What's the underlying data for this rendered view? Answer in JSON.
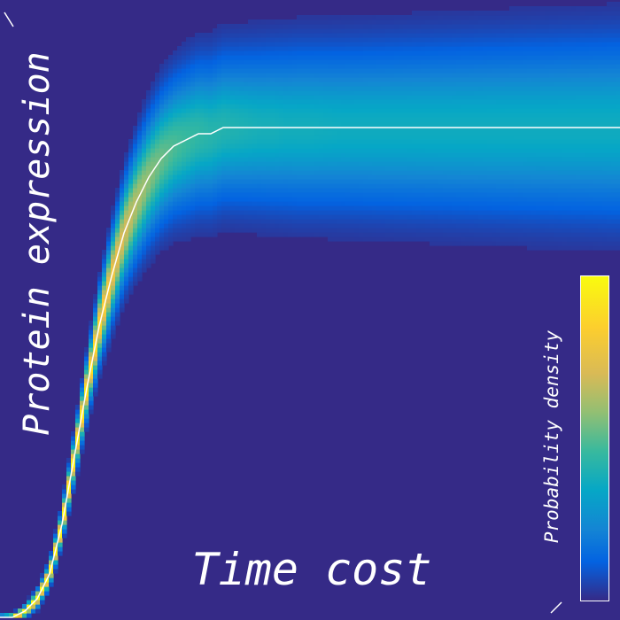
{
  "chart_data": {
    "type": "heatmap",
    "title": "",
    "xlabel": "Time cost",
    "ylabel": "Protein expression",
    "colorbar_label": "Probability density",
    "colormap": "parula",
    "colormap_stops": [
      "#352a87",
      "#0363e1",
      "#1485d4",
      "#06a7c6",
      "#38b99e",
      "#92bf73",
      "#d9ba56",
      "#fcce2e",
      "#f9fb0e"
    ],
    "background_color": "#352a87",
    "mean_curve_color": "#ffffff",
    "tick_labels": "none",
    "grid": false,
    "colorbar_placement": "bottom-right",
    "mean_curve": {
      "x": [
        0,
        0.02,
        0.04,
        0.06,
        0.08,
        0.1,
        0.12,
        0.14,
        0.16,
        0.18,
        0.2,
        0.22,
        0.24,
        0.26,
        0.28,
        0.3,
        0.32,
        0.34,
        0.36,
        0.38,
        0.4,
        0.42,
        0.44,
        0.46,
        0.48,
        0.5,
        0.55,
        0.6,
        0.65,
        0.7,
        0.75,
        0.8,
        0.85,
        0.9,
        0.95,
        1.0
      ],
      "y": [
        0.0,
        0.0,
        0.01,
        0.03,
        0.07,
        0.15,
        0.26,
        0.37,
        0.47,
        0.55,
        0.62,
        0.67,
        0.71,
        0.74,
        0.76,
        0.77,
        0.78,
        0.78,
        0.79,
        0.79,
        0.79,
        0.79,
        0.79,
        0.79,
        0.79,
        0.79,
        0.79,
        0.79,
        0.79,
        0.79,
        0.79,
        0.79,
        0.79,
        0.79,
        0.79,
        0.79
      ]
    },
    "band": {
      "x": [
        0,
        0.02,
        0.04,
        0.06,
        0.08,
        0.1,
        0.12,
        0.14,
        0.16,
        0.18,
        0.2,
        0.22,
        0.24,
        0.26,
        0.28,
        0.3,
        0.32,
        0.34,
        0.36,
        0.38,
        0.4,
        0.42,
        0.44,
        0.46,
        0.48,
        0.5,
        0.55,
        0.6,
        0.65,
        0.7,
        0.75,
        0.8,
        0.85,
        0.9,
        0.95,
        1.0
      ],
      "spread": [
        0.002,
        0.003,
        0.005,
        0.008,
        0.011,
        0.015,
        0.02,
        0.026,
        0.033,
        0.04,
        0.047,
        0.053,
        0.058,
        0.062,
        0.065,
        0.068,
        0.07,
        0.071,
        0.072,
        0.073,
        0.074,
        0.075,
        0.076,
        0.077,
        0.078,
        0.078,
        0.079,
        0.08,
        0.081,
        0.082,
        0.083,
        0.084,
        0.085,
        0.086,
        0.087,
        0.088
      ],
      "peak_density": [
        0.95,
        1.0,
        1.0,
        1.0,
        1.0,
        1.0,
        0.98,
        0.95,
        0.9,
        0.83,
        0.75,
        0.68,
        0.62,
        0.57,
        0.53,
        0.5,
        0.48,
        0.46,
        0.45,
        0.44,
        0.43,
        0.42,
        0.42,
        0.41,
        0.41,
        0.41,
        0.4,
        0.4,
        0.4,
        0.4,
        0.4,
        0.4,
        0.4,
        0.4,
        0.4,
        0.4
      ]
    },
    "xlim": [
      0,
      1
    ],
    "ylim": [
      0,
      1
    ]
  }
}
